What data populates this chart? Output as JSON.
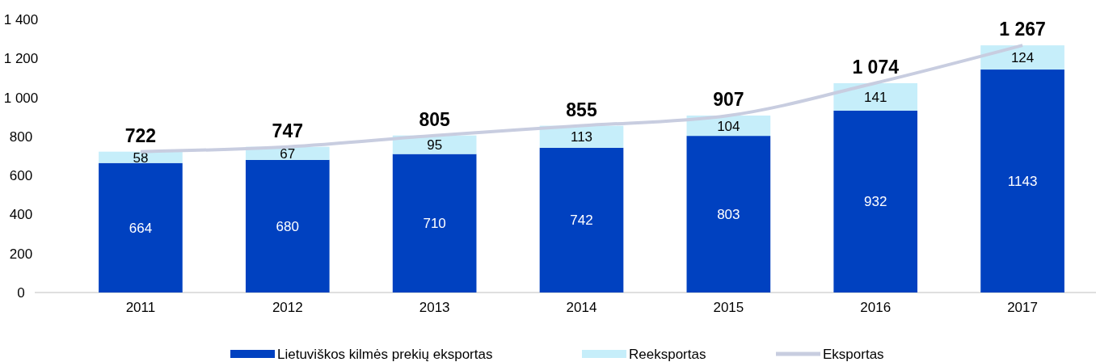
{
  "chart_data": {
    "type": "bar",
    "stacked": true,
    "categories": [
      "2011",
      "2012",
      "2013",
      "2014",
      "2015",
      "2016",
      "2017"
    ],
    "series": [
      {
        "name": "Lietuviškos kilmės prekių eksportas",
        "color": "#0041c0",
        "values": [
          664,
          680,
          710,
          742,
          803,
          932,
          1143
        ],
        "value_labels": [
          "664",
          "680",
          "710",
          "742",
          "803",
          "932",
          "1143"
        ]
      },
      {
        "name": "Reeksportas",
        "color": "#c6eefa",
        "values": [
          58,
          67,
          95,
          113,
          104,
          141,
          124
        ],
        "value_labels": [
          "58",
          "67",
          "95",
          "113",
          "104",
          "141",
          "124"
        ]
      },
      {
        "name": "Eksportas",
        "type": "line",
        "color": "#c8cde0",
        "values": [
          722,
          747,
          805,
          855,
          907,
          1074,
          1267
        ],
        "value_labels": [
          "722",
          "747",
          "805",
          "855",
          "907",
          "1 074",
          "1 267"
        ]
      }
    ],
    "ylim": [
      0,
      1400
    ],
    "yticks": [
      0,
      200,
      400,
      600,
      800,
      {
        "value": 1000,
        "label": "1 000"
      },
      {
        "value": 1200,
        "label": "1 200"
      },
      {
        "value": 1400,
        "label": "1 400"
      }
    ],
    "grid": false,
    "legend": "bottom"
  }
}
